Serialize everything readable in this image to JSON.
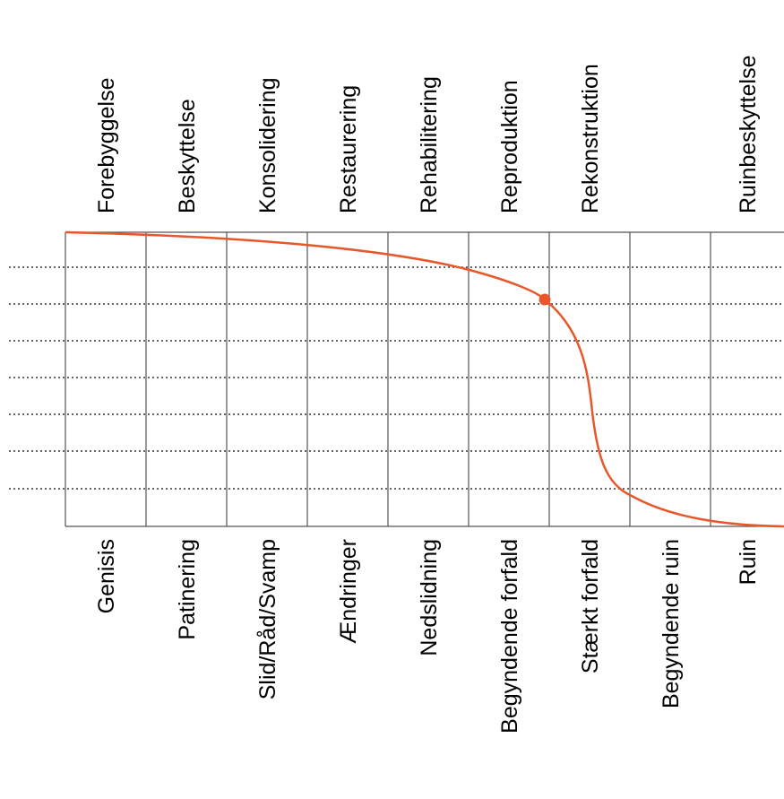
{
  "colors": {
    "curve": "#e8572a",
    "grid": "#555555",
    "dotted": "#333333",
    "text": "#000000"
  },
  "measures": [
    "Forebyggelse",
    "Beskyttelse",
    "Konsolidering",
    "Restaurering",
    "Rehabilitering",
    "Reproduktion",
    "Rekonstruktion",
    "",
    "Ruinbeskyttelse"
  ],
  "stages": [
    "Genisis",
    "Patinering",
    "Slid/Råd/Svamp",
    "Ændringer",
    "Nedslidning",
    "Begyndende forfald",
    "Stærkt forfald",
    "Begyndende ruin",
    "Ruin"
  ],
  "curve_marker": "end of Reproduktion / start of Rekonstruktion"
}
